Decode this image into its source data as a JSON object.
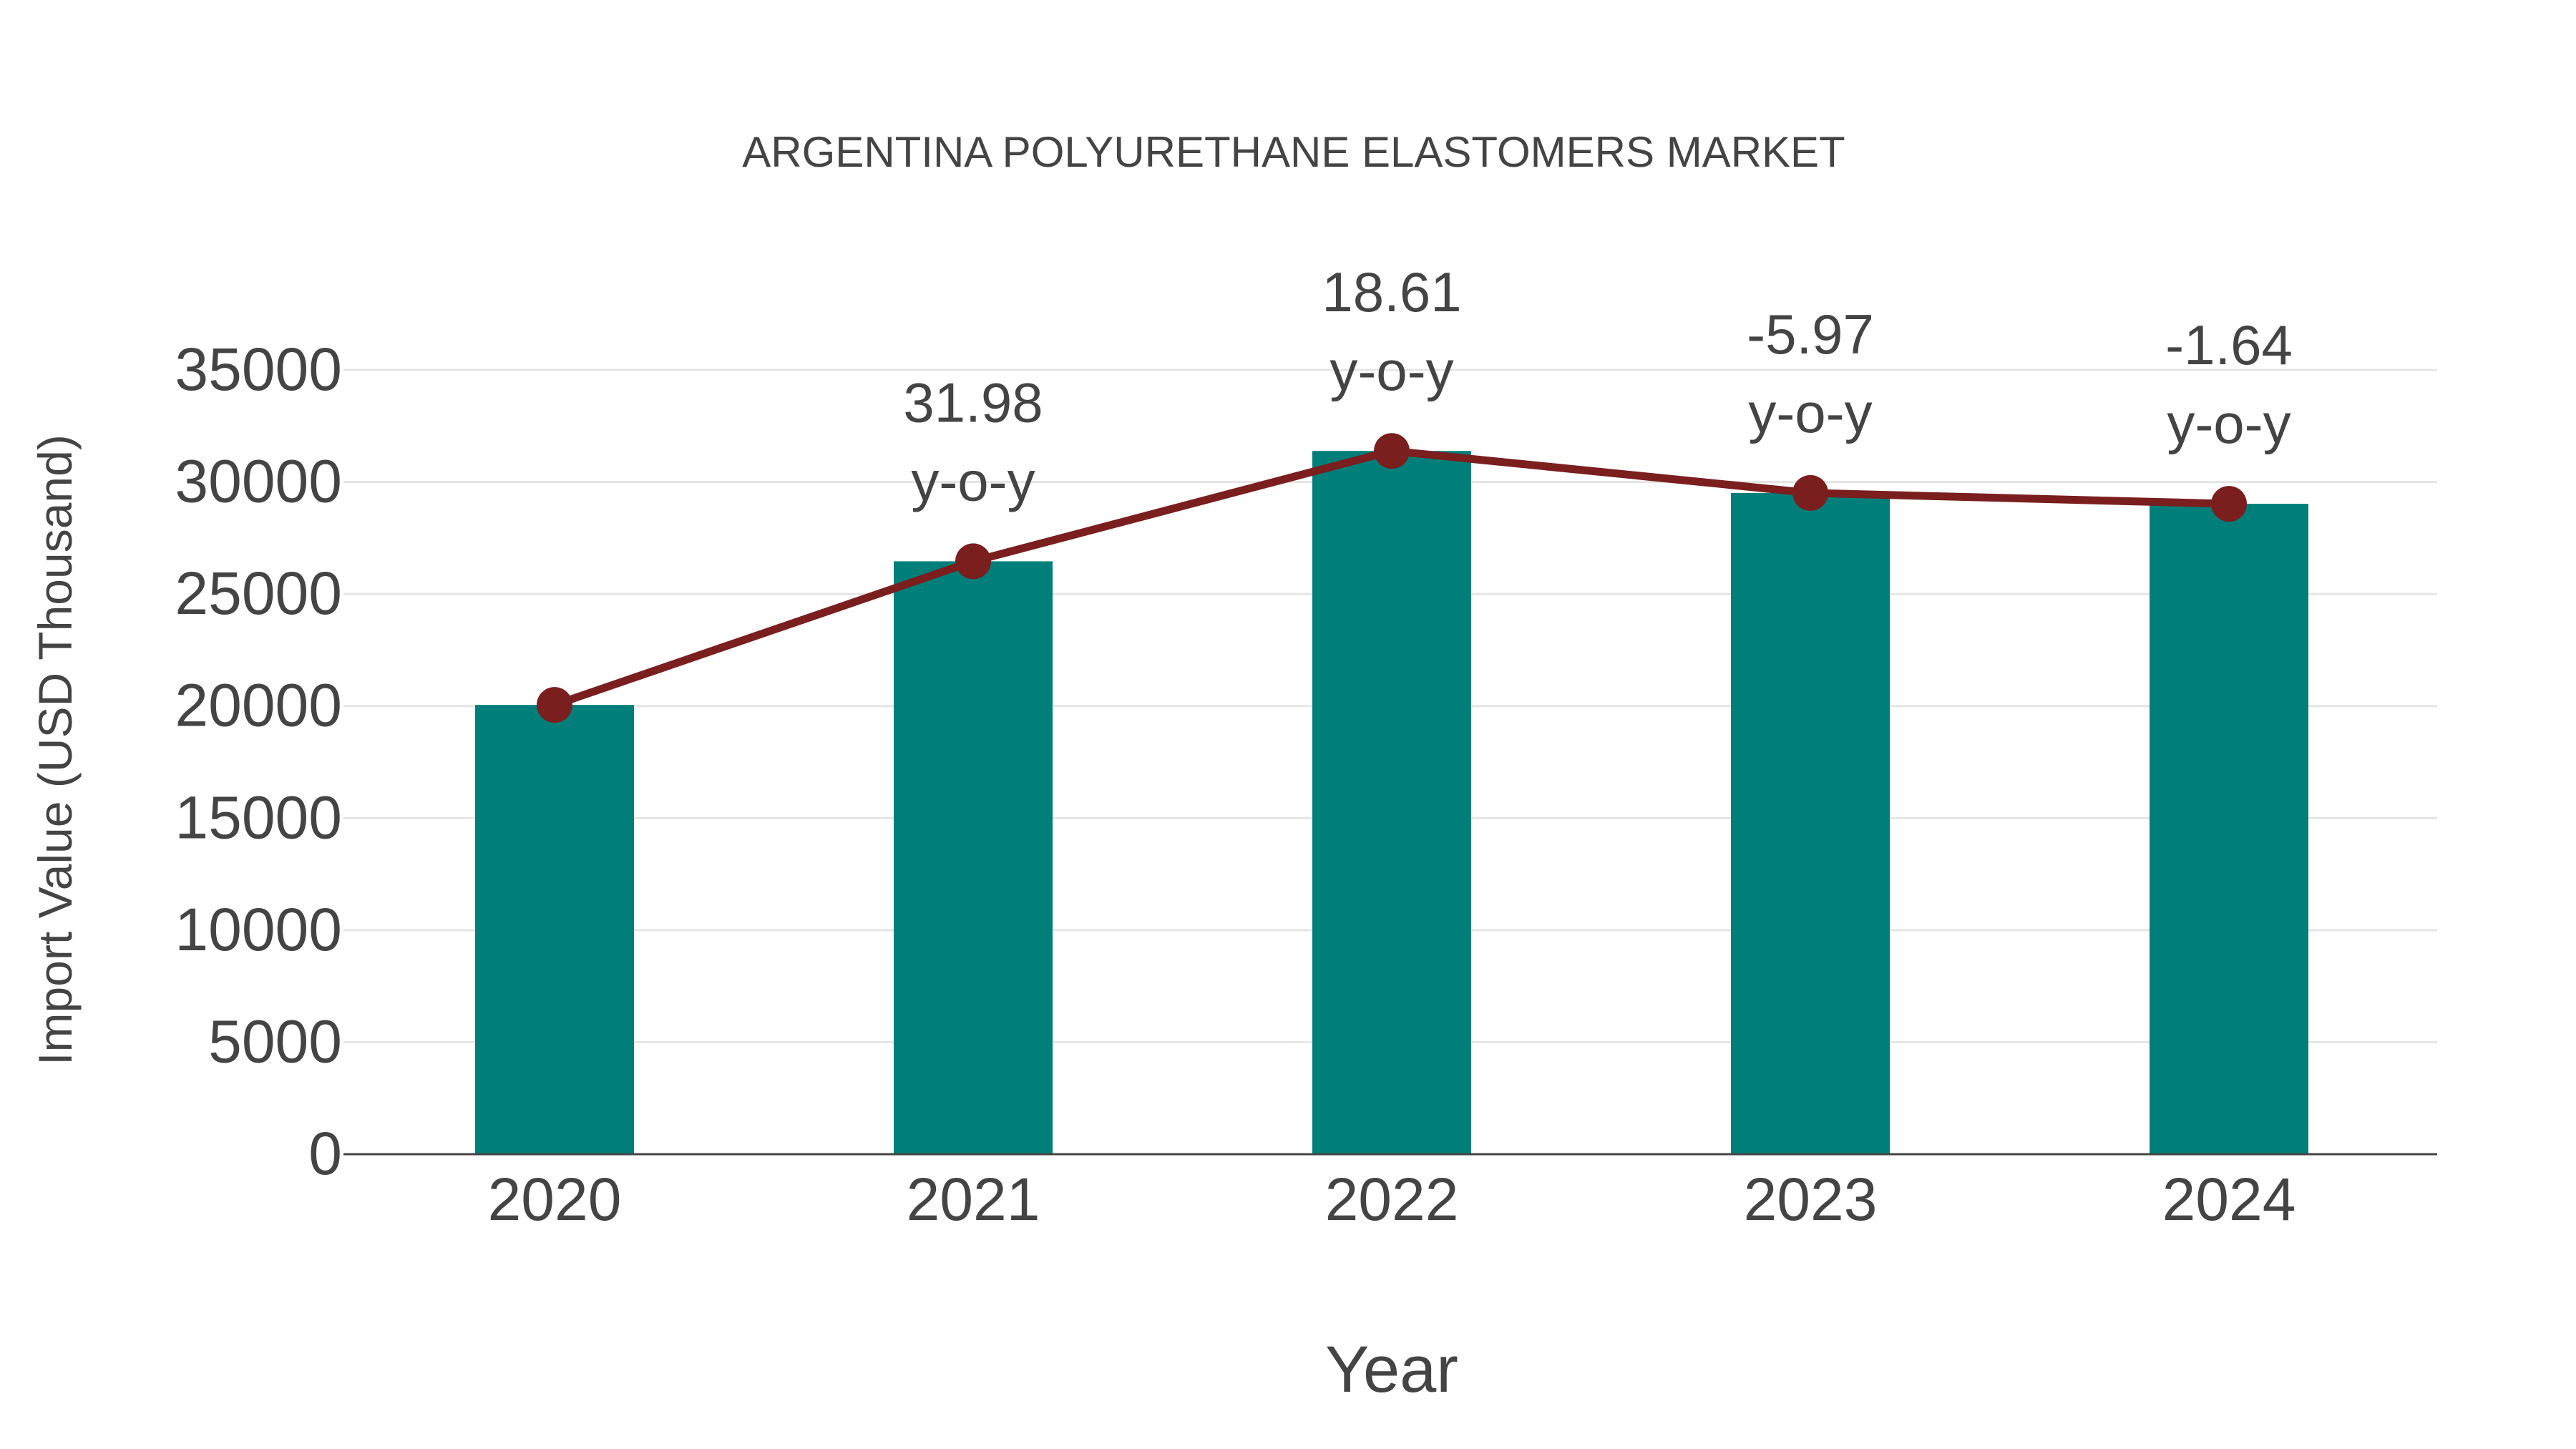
{
  "chart_data": {
    "type": "bar",
    "title": "ARGENTINA POLYURETHANE ELASTOMERS MARKET",
    "xlabel": "Year",
    "ylabel": "Import Value (USD Thousand)",
    "categories": [
      "2020",
      "2021",
      "2022",
      "2023",
      "2024"
    ],
    "series": [
      {
        "name": "Import Value",
        "type": "bar",
        "color": "#007f7a",
        "values": [
          20050,
          26460,
          31385,
          29510,
          29025
        ]
      },
      {
        "name": "Trend",
        "type": "line",
        "color": "#7a1e1e",
        "values": [
          20050,
          26460,
          31385,
          29510,
          29025
        ]
      }
    ],
    "annotations": [
      {
        "category": "2021",
        "value": "31.98",
        "suffix": "y-o-y"
      },
      {
        "category": "2022",
        "value": "18.61",
        "suffix": "y-o-y"
      },
      {
        "category": "2023",
        "value": "-5.97",
        "suffix": "y-o-y"
      },
      {
        "category": "2024",
        "value": "-1.64",
        "suffix": "y-o-y"
      }
    ],
    "yticks": [
      0,
      5000,
      10000,
      15000,
      20000,
      25000,
      30000,
      35000
    ],
    "ylim": [
      0,
      35000
    ],
    "grid": true,
    "legend": "none"
  }
}
